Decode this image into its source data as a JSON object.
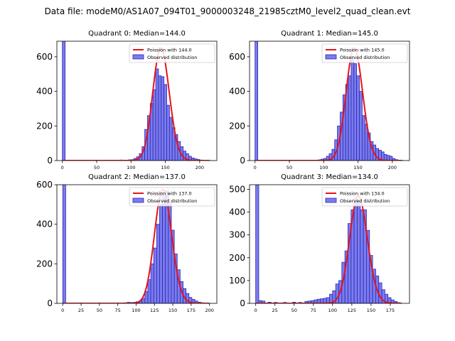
{
  "suptitle": "Data file: modeM0/AS1A07_094T01_9000003248_21985cztM0_level2_quad_clean.evt",
  "chart_data": [
    {
      "type": "bar",
      "title": "Quadrant 0: Median=144.0",
      "median": 144,
      "xlim": [
        -8,
        225
      ],
      "ylim": [
        0,
        690
      ],
      "xticks": [
        0,
        50,
        100,
        150,
        200
      ],
      "yticks": [
        0,
        200,
        400,
        600
      ],
      "bin_width": 4,
      "zero_bin_value": 690,
      "poisson_amp": 650,
      "legend": [
        "Poission with 144.0",
        "Observed distribution"
      ],
      "bins": [
        [
          84,
          3
        ],
        [
          88,
          2
        ],
        [
          92,
          2
        ],
        [
          96,
          4
        ],
        [
          100,
          5
        ],
        [
          104,
          12
        ],
        [
          108,
          22
        ],
        [
          112,
          40
        ],
        [
          116,
          80
        ],
        [
          120,
          180
        ],
        [
          124,
          260
        ],
        [
          128,
          330
        ],
        [
          132,
          410
        ],
        [
          136,
          530
        ],
        [
          140,
          490
        ],
        [
          144,
          485
        ],
        [
          148,
          440
        ],
        [
          152,
          320
        ],
        [
          156,
          250
        ],
        [
          160,
          190
        ],
        [
          164,
          150
        ],
        [
          168,
          110
        ],
        [
          172,
          80
        ],
        [
          176,
          55
        ],
        [
          180,
          40
        ],
        [
          184,
          25
        ],
        [
          188,
          15
        ],
        [
          192,
          10
        ],
        [
          196,
          6
        ],
        [
          200,
          3
        ],
        [
          204,
          2
        ]
      ]
    },
    {
      "type": "bar",
      "title": "Quadrant 1: Median=145.0",
      "median": 145,
      "xlim": [
        -8,
        225
      ],
      "ylim": [
        0,
        690
      ],
      "xticks": [
        0,
        50,
        100,
        150,
        200
      ],
      "yticks": [
        0,
        200,
        400,
        600
      ],
      "bin_width": 4,
      "zero_bin_value": 690,
      "poisson_amp": 650,
      "legend": [
        "Poission with 145.0",
        "Observed distribution"
      ],
      "bins": [
        [
          92,
          4
        ],
        [
          96,
          8
        ],
        [
          100,
          12
        ],
        [
          104,
          25
        ],
        [
          108,
          40
        ],
        [
          112,
          65
        ],
        [
          116,
          120
        ],
        [
          120,
          200
        ],
        [
          124,
          280
        ],
        [
          128,
          380
        ],
        [
          132,
          440
        ],
        [
          136,
          490
        ],
        [
          140,
          600
        ],
        [
          144,
          560
        ],
        [
          148,
          490
        ],
        [
          152,
          400
        ],
        [
          156,
          260
        ],
        [
          160,
          210
        ],
        [
          164,
          160
        ],
        [
          168,
          110
        ],
        [
          172,
          90
        ],
        [
          176,
          70
        ],
        [
          180,
          60
        ],
        [
          184,
          50
        ],
        [
          188,
          35
        ],
        [
          192,
          30
        ],
        [
          196,
          25
        ],
        [
          200,
          12
        ],
        [
          204,
          5
        ]
      ]
    },
    {
      "type": "bar",
      "title": "Quadrant 2: Median=137.0",
      "median": 137,
      "xlim": [
        -8,
        210
      ],
      "ylim": [
        0,
        600
      ],
      "xticks": [
        0,
        25,
        50,
        75,
        100,
        125,
        150,
        175,
        200
      ],
      "yticks": [
        0,
        200,
        400,
        600
      ],
      "bin_width": 4,
      "zero_bin_value": 600,
      "poisson_amp": 575,
      "legend": [
        "Poission with 137.0",
        "Observed distribution"
      ],
      "bins": [
        [
          80,
          2
        ],
        [
          84,
          3
        ],
        [
          88,
          5
        ],
        [
          92,
          4
        ],
        [
          96,
          5
        ],
        [
          100,
          8
        ],
        [
          104,
          12
        ],
        [
          108,
          25
        ],
        [
          112,
          60
        ],
        [
          116,
          120
        ],
        [
          120,
          200
        ],
        [
          124,
          280
        ],
        [
          128,
          400
        ],
        [
          132,
          500
        ],
        [
          136,
          550
        ],
        [
          140,
          570
        ],
        [
          144,
          510
        ],
        [
          148,
          370
        ],
        [
          152,
          250
        ],
        [
          156,
          170
        ],
        [
          160,
          110
        ],
        [
          164,
          75
        ],
        [
          168,
          50
        ],
        [
          172,
          30
        ],
        [
          176,
          20
        ],
        [
          180,
          12
        ],
        [
          184,
          6
        ],
        [
          188,
          3
        ]
      ]
    },
    {
      "type": "bar",
      "title": "Quadrant 3: Median=134.0",
      "median": 134,
      "xlim": [
        -8,
        200
      ],
      "ylim": [
        0,
        520
      ],
      "xticks": [
        0,
        25,
        50,
        75,
        100,
        125,
        150,
        175
      ],
      "yticks": [
        0,
        100,
        200,
        300,
        400,
        500
      ],
      "bin_width": 4,
      "zero_bin_value": 520,
      "poisson_amp": 470,
      "legend": [
        "Poission with 134.0",
        "Observed distribution"
      ],
      "bins": [
        [
          4,
          12
        ],
        [
          8,
          10
        ],
        [
          16,
          5
        ],
        [
          24,
          4
        ],
        [
          36,
          4
        ],
        [
          48,
          5
        ],
        [
          56,
          4
        ],
        [
          64,
          8
        ],
        [
          68,
          10
        ],
        [
          72,
          12
        ],
        [
          76,
          15
        ],
        [
          80,
          18
        ],
        [
          84,
          20
        ],
        [
          88,
          22
        ],
        [
          92,
          25
        ],
        [
          96,
          40
        ],
        [
          100,
          55
        ],
        [
          104,
          85
        ],
        [
          108,
          100
        ],
        [
          112,
          180
        ],
        [
          116,
          230
        ],
        [
          120,
          350
        ],
        [
          124,
          410
        ],
        [
          128,
          460
        ],
        [
          132,
          450
        ],
        [
          136,
          410
        ],
        [
          140,
          410
        ],
        [
          144,
          320
        ],
        [
          148,
          210
        ],
        [
          152,
          150
        ],
        [
          156,
          120
        ],
        [
          160,
          90
        ],
        [
          164,
          60
        ],
        [
          168,
          40
        ],
        [
          172,
          25
        ],
        [
          176,
          15
        ],
        [
          180,
          8
        ],
        [
          184,
          3
        ]
      ]
    }
  ]
}
